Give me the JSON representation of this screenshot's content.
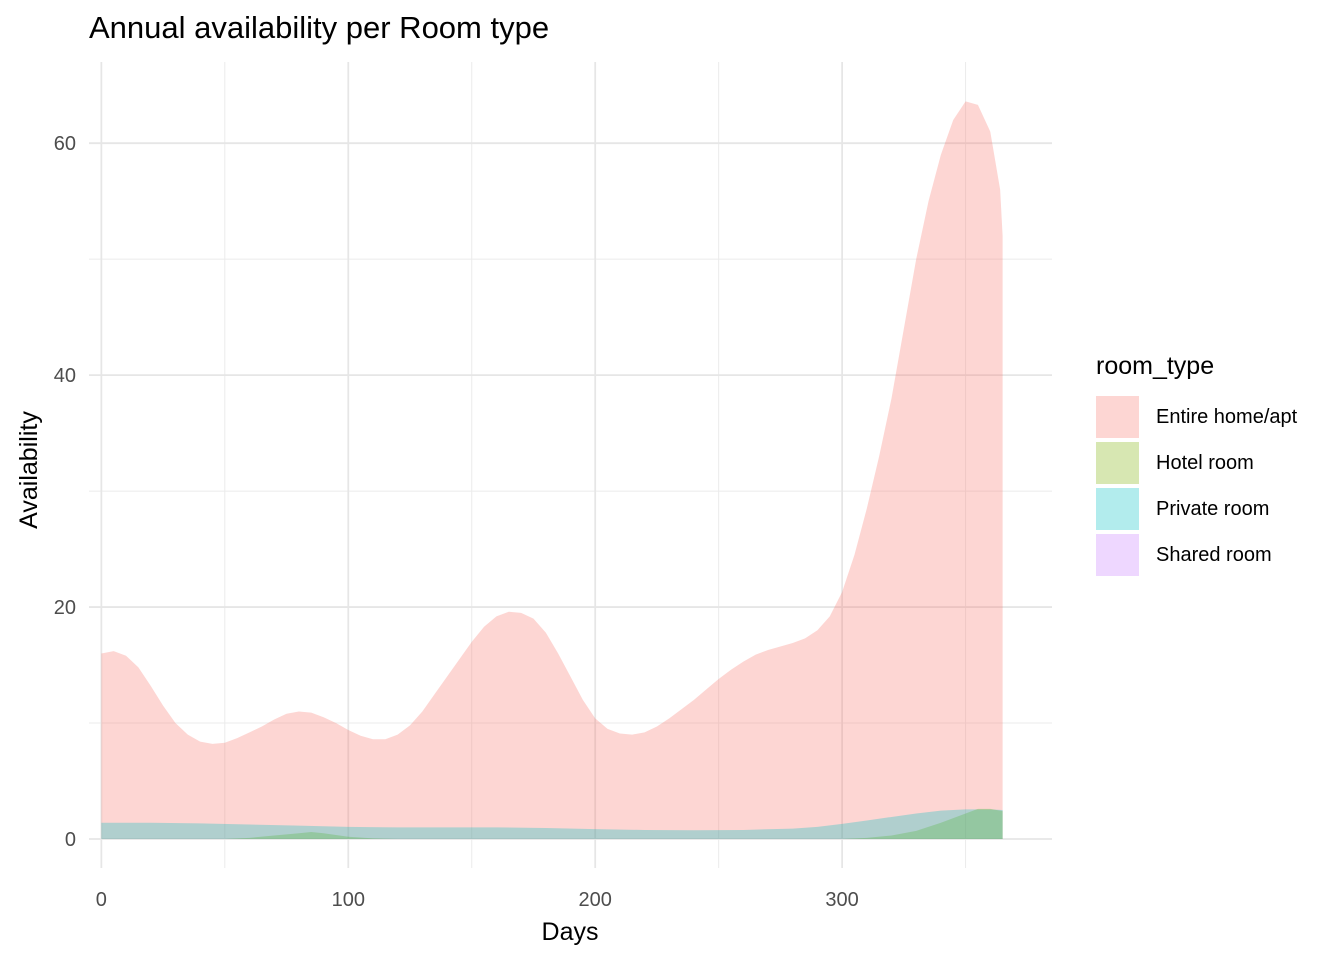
{
  "title": "Annual availability per Room type",
  "chart_data": {
    "type": "area",
    "title": "Annual availability per Room type",
    "xlabel": "Days",
    "ylabel": "Availability",
    "xlim": [
      -5,
      385
    ],
    "ylim": [
      -2.5,
      67
    ],
    "x_ticks": [
      0,
      100,
      200,
      300
    ],
    "y_ticks": [
      0,
      20,
      40,
      60
    ],
    "grid": true,
    "legend_title": "room_type",
    "legend_position": "right",
    "series": [
      {
        "name": "Entire home/apt",
        "color": "#F8766D",
        "points": [
          [
            0,
            16
          ],
          [
            5,
            16.2
          ],
          [
            10,
            15.8
          ],
          [
            15,
            14.8
          ],
          [
            20,
            13.2
          ],
          [
            25,
            11.5
          ],
          [
            30,
            10
          ],
          [
            35,
            9
          ],
          [
            40,
            8.4
          ],
          [
            45,
            8.2
          ],
          [
            50,
            8.3
          ],
          [
            55,
            8.7
          ],
          [
            60,
            9.2
          ],
          [
            65,
            9.7
          ],
          [
            70,
            10.3
          ],
          [
            75,
            10.8
          ],
          [
            80,
            11
          ],
          [
            85,
            10.9
          ],
          [
            90,
            10.5
          ],
          [
            95,
            10
          ],
          [
            100,
            9.4
          ],
          [
            105,
            8.9
          ],
          [
            110,
            8.6
          ],
          [
            115,
            8.6
          ],
          [
            120,
            9
          ],
          [
            125,
            9.8
          ],
          [
            130,
            11
          ],
          [
            135,
            12.5
          ],
          [
            140,
            14
          ],
          [
            145,
            15.5
          ],
          [
            150,
            17
          ],
          [
            155,
            18.3
          ],
          [
            160,
            19.2
          ],
          [
            165,
            19.6
          ],
          [
            170,
            19.5
          ],
          [
            175,
            19
          ],
          [
            180,
            17.8
          ],
          [
            185,
            16
          ],
          [
            190,
            14
          ],
          [
            195,
            12
          ],
          [
            200,
            10.4
          ],
          [
            205,
            9.5
          ],
          [
            210,
            9.1
          ],
          [
            215,
            9
          ],
          [
            220,
            9.2
          ],
          [
            225,
            9.7
          ],
          [
            230,
            10.4
          ],
          [
            235,
            11.2
          ],
          [
            240,
            12
          ],
          [
            245,
            12.9
          ],
          [
            250,
            13.8
          ],
          [
            255,
            14.6
          ],
          [
            260,
            15.3
          ],
          [
            265,
            15.9
          ],
          [
            270,
            16.3
          ],
          [
            275,
            16.6
          ],
          [
            280,
            16.9
          ],
          [
            285,
            17.3
          ],
          [
            290,
            18
          ],
          [
            295,
            19.2
          ],
          [
            300,
            21.3
          ],
          [
            305,
            24.5
          ],
          [
            310,
            28.5
          ],
          [
            315,
            33
          ],
          [
            320,
            38
          ],
          [
            325,
            44
          ],
          [
            330,
            50
          ],
          [
            335,
            55
          ],
          [
            340,
            59
          ],
          [
            345,
            62
          ],
          [
            350,
            63.6
          ],
          [
            355,
            63.3
          ],
          [
            360,
            61
          ],
          [
            364,
            56
          ],
          [
            365,
            52
          ]
        ]
      },
      {
        "name": "Hotel room",
        "color": "#7CAE00",
        "points": [
          [
            0,
            0
          ],
          [
            50,
            0
          ],
          [
            60,
            0.1
          ],
          [
            70,
            0.3
          ],
          [
            80,
            0.5
          ],
          [
            85,
            0.6
          ],
          [
            90,
            0.5
          ],
          [
            100,
            0.2
          ],
          [
            110,
            0.05
          ],
          [
            120,
            0
          ],
          [
            300,
            0
          ],
          [
            310,
            0.1
          ],
          [
            320,
            0.3
          ],
          [
            330,
            0.7
          ],
          [
            340,
            1.4
          ],
          [
            350,
            2.2
          ],
          [
            355,
            2.6
          ],
          [
            360,
            2.6
          ],
          [
            365,
            2.4
          ]
        ]
      },
      {
        "name": "Private room",
        "color": "#00BFC4",
        "points": [
          [
            0,
            1.4
          ],
          [
            20,
            1.4
          ],
          [
            40,
            1.35
          ],
          [
            60,
            1.25
          ],
          [
            80,
            1.15
          ],
          [
            100,
            1.05
          ],
          [
            120,
            1
          ],
          [
            140,
            1
          ],
          [
            160,
            1
          ],
          [
            180,
            0.95
          ],
          [
            200,
            0.85
          ],
          [
            220,
            0.78
          ],
          [
            240,
            0.75
          ],
          [
            260,
            0.78
          ],
          [
            280,
            0.9
          ],
          [
            290,
            1.05
          ],
          [
            300,
            1.3
          ],
          [
            310,
            1.6
          ],
          [
            320,
            1.9
          ],
          [
            330,
            2.2
          ],
          [
            340,
            2.45
          ],
          [
            350,
            2.55
          ],
          [
            360,
            2.55
          ],
          [
            365,
            2.5
          ]
        ]
      },
      {
        "name": "Shared room",
        "color": "#C77CFF",
        "points": []
      }
    ]
  }
}
